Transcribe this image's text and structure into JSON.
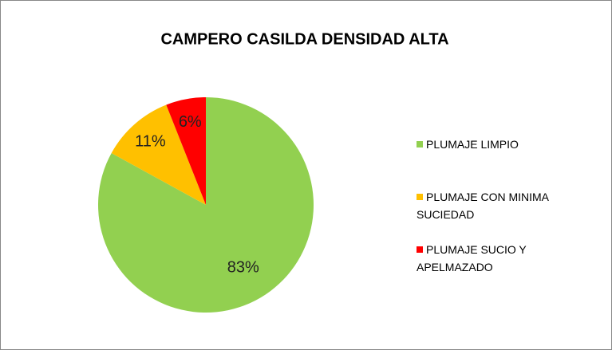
{
  "chart_data": {
    "type": "pie",
    "title": "CAMPERO CASILDA DENSIDAD ALTA",
    "categories": [
      "PLUMAJE LIMPIO",
      "PLUMAJE CON MINIMA SUCIEDAD",
      "PLUMAJE SUCIO Y APELMAZADO"
    ],
    "values": [
      83,
      11,
      6
    ],
    "value_labels": [
      "83%",
      "11%",
      "6%"
    ],
    "colors": [
      "#92d050",
      "#ffc000",
      "#ff0000"
    ],
    "legend": "right"
  }
}
